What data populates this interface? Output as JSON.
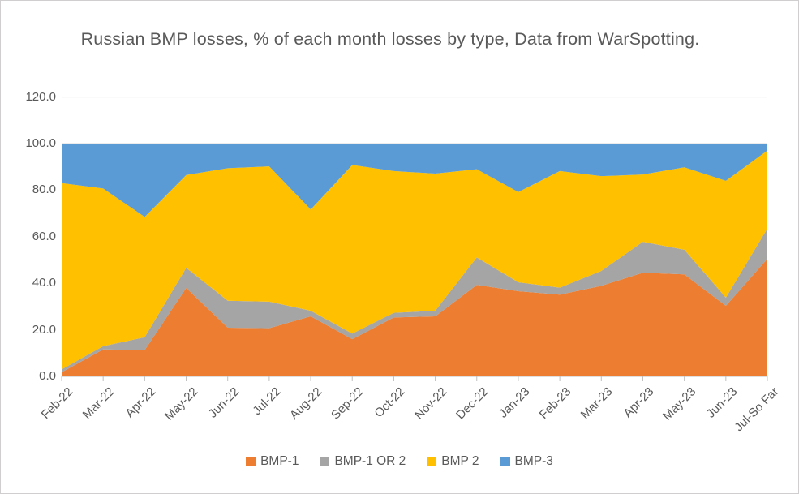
{
  "chart_data": {
    "type": "area",
    "stacking": "percent-stacked",
    "title": "Russian BMP losses, % of each month losses by type, Data from WarSpotting.",
    "categories": [
      "Feb-22",
      "Mar-22",
      "Apr-22",
      "May-22",
      "Jun-22",
      "Jul-22",
      "Aug-22",
      "Sep-22",
      "Oct-22",
      "Nov-22",
      "Dec-22",
      "Jan-23",
      "Feb-23",
      "Mar-23",
      "Apr-23",
      "May-23",
      "Jun-23",
      "Jul-So Far"
    ],
    "series": [
      {
        "name": "BMP-1",
        "color": "#ED7D31",
        "values": [
          1.8,
          11.6,
          11.3,
          38.0,
          20.9,
          20.7,
          25.8,
          16.0,
          25.3,
          25.8,
          39.3,
          36.6,
          35.1,
          38.9,
          44.5,
          43.8,
          30.3,
          50.5
        ]
      },
      {
        "name": "BMP-1 OR 2",
        "color": "#A5A5A5",
        "values": [
          1.2,
          1.4,
          5.5,
          8.6,
          11.6,
          11.4,
          2.4,
          2.4,
          2.0,
          2.4,
          11.8,
          3.8,
          3.0,
          6.4,
          13.3,
          10.6,
          3.5,
          13.0
        ]
      },
      {
        "name": "BMP 2",
        "color": "#FFC000",
        "values": [
          80.0,
          67.7,
          51.7,
          39.9,
          56.9,
          58.1,
          43.5,
          72.4,
          60.9,
          58.9,
          37.9,
          38.8,
          50.1,
          40.7,
          28.9,
          35.4,
          50.2,
          33.5
        ]
      },
      {
        "name": "BMP-3",
        "color": "#5B9BD5",
        "values": [
          17.0,
          19.3,
          31.5,
          13.5,
          10.6,
          9.8,
          28.3,
          9.2,
          11.8,
          12.9,
          11.0,
          20.8,
          11.8,
          14.0,
          13.3,
          10.2,
          16.0,
          3.0
        ]
      }
    ],
    "y_axis": {
      "min": 0,
      "max": 120,
      "step": 20,
      "tick_labels": [
        "0.0",
        "20.0",
        "40.0",
        "60.0",
        "80.0",
        "100.0",
        "120.0"
      ]
    },
    "legend_position": "bottom",
    "grid": "horizontal",
    "colors": {
      "gridline": "#D9D9D9",
      "axis": "#BFBFBF",
      "text": "#595959"
    }
  }
}
